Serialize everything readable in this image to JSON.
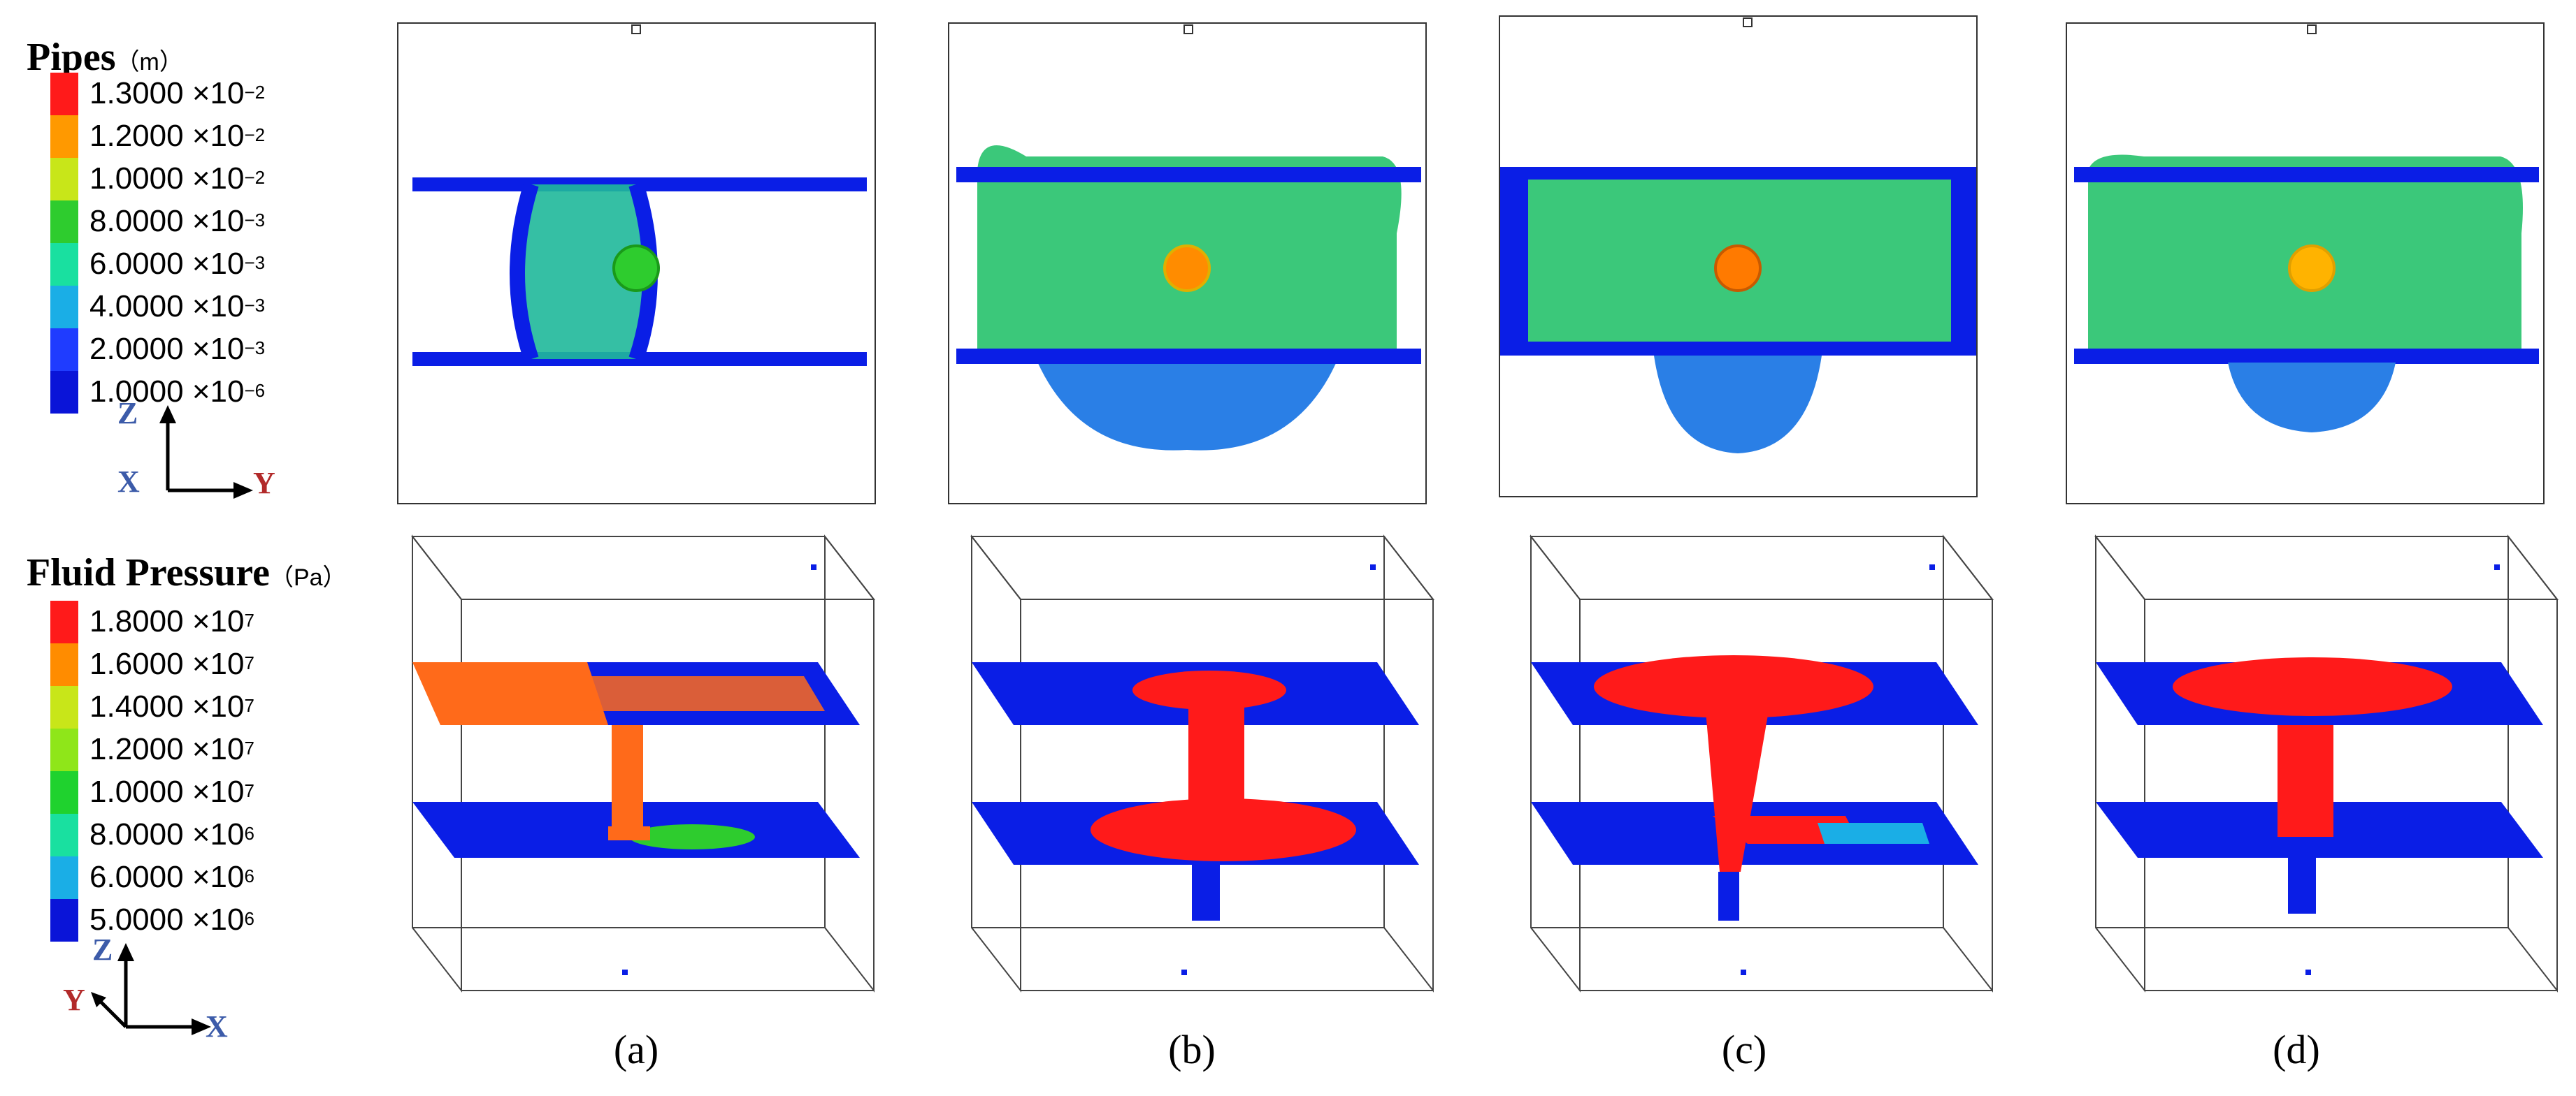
{
  "legend_pipes": {
    "title": "Pipes",
    "unit": "（m）",
    "items": [
      {
        "mantissa": "1.3000",
        "exp": "−2",
        "color": "#ff1a1a"
      },
      {
        "mantissa": "1.2000",
        "exp": "−2",
        "color": "#ff9900"
      },
      {
        "mantissa": "1.0000",
        "exp": "−2",
        "color": "#c8e619"
      },
      {
        "mantissa": "8.0000",
        "exp": "−3",
        "color": "#2ecc2e"
      },
      {
        "mantissa": "6.0000",
        "exp": "−3",
        "color": "#19e0a0"
      },
      {
        "mantissa": "4.0000",
        "exp": "−3",
        "color": "#1aaee6"
      },
      {
        "mantissa": "2.0000",
        "exp": "−3",
        "color": "#1f3cff"
      },
      {
        "mantissa": "1.0000",
        "exp": "−6",
        "color": "#0a14d8"
      }
    ],
    "axes": {
      "up": "Z",
      "origin": "X",
      "right": "Y"
    }
  },
  "legend_pressure": {
    "title": "Fluid Pressure",
    "unit": "（Pa）",
    "items": [
      {
        "mantissa": "1.8000",
        "exp": "7",
        "color": "#ff1a1a"
      },
      {
        "mantissa": "1.6000",
        "exp": "7",
        "color": "#ff8c00"
      },
      {
        "mantissa": "1.4000",
        "exp": "7",
        "color": "#c8e619"
      },
      {
        "mantissa": "1.2000",
        "exp": "7",
        "color": "#8fe619"
      },
      {
        "mantissa": "1.0000",
        "exp": "7",
        "color": "#1fd22e"
      },
      {
        "mantissa": "8.0000",
        "exp": "6",
        "color": "#19e0a0"
      },
      {
        "mantissa": "6.0000",
        "exp": "6",
        "color": "#1aaee6"
      },
      {
        "mantissa": "5.0000",
        "exp": "6",
        "color": "#0a14d8"
      }
    ],
    "axes": {
      "up": "Z",
      "left": "Y",
      "right": "X"
    }
  },
  "times_sign": "×10",
  "captions": [
    "(a)",
    "(b)",
    "(c)",
    "(d)"
  ],
  "colors": {
    "fracture_blue": "#0a1ee6",
    "pipe_green": "#2ecc5a",
    "injection_orange": "#ff7a00",
    "pressure_red": "#ff1a1a",
    "pressure_orange": "#ff6a1a",
    "frame": "#333333"
  }
}
